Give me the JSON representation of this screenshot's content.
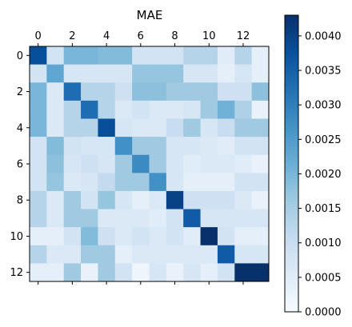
{
  "chart_data": {
    "type": "heatmap",
    "title": "MAE",
    "x_ticks": [
      "0",
      "2",
      "4",
      "6",
      "8",
      "10",
      "12"
    ],
    "y_ticks": [
      "0",
      "2",
      "4",
      "6",
      "8",
      "10",
      "12"
    ],
    "colorbar_ticks": [
      "0.0000",
      "0.0005",
      "0.0010",
      "0.0015",
      "0.0020",
      "0.0025",
      "0.0030",
      "0.0035",
      "0.0040"
    ],
    "colormap": "Blues",
    "vmin": 0.0,
    "vmax": 0.0043,
    "grid": false,
    "matrix": [
      [
        0.0038,
        0.0008,
        0.002,
        0.002,
        0.0019,
        0.0019,
        0.0008,
        0.0008,
        0.0008,
        0.0013,
        0.0013,
        0.0005,
        0.0013,
        0.0004
      ],
      [
        0.0008,
        0.0023,
        0.0007,
        0.0007,
        0.0007,
        0.0007,
        0.0017,
        0.0017,
        0.0017,
        0.0007,
        0.0007,
        0.0004,
        0.0007,
        0.0004
      ],
      [
        0.002,
        0.0006,
        0.0033,
        0.0013,
        0.0013,
        0.0009,
        0.0018,
        0.0018,
        0.0016,
        0.0016,
        0.0016,
        0.0009,
        0.0009,
        0.0018
      ],
      [
        0.002,
        0.0006,
        0.0013,
        0.0033,
        0.0013,
        0.0006,
        0.0008,
        0.0006,
        0.0006,
        0.0007,
        0.0016,
        0.0021,
        0.0014,
        0.0003
      ],
      [
        0.002,
        0.0006,
        0.0013,
        0.0013,
        0.0038,
        0.0007,
        0.0006,
        0.0006,
        0.001,
        0.0016,
        0.0007,
        0.001,
        0.0016,
        0.0016
      ],
      [
        0.0008,
        0.0019,
        0.0008,
        0.0007,
        0.0007,
        0.0027,
        0.0016,
        0.0016,
        0.0007,
        0.0007,
        0.0006,
        0.0005,
        0.0008,
        0.0008
      ],
      [
        0.0008,
        0.0018,
        0.0007,
        0.0009,
        0.0007,
        0.0016,
        0.0028,
        0.0016,
        0.0007,
        0.0005,
        0.0006,
        0.0006,
        0.0005,
        0.0003
      ],
      [
        0.0008,
        0.0017,
        0.0006,
        0.0007,
        0.0011,
        0.0016,
        0.0016,
        0.0027,
        0.0007,
        0.0004,
        0.0004,
        0.0004,
        0.0008,
        0.0008
      ],
      [
        0.0013,
        0.0006,
        0.0016,
        0.0008,
        0.0017,
        0.0007,
        0.0004,
        0.0006,
        0.004,
        0.0009,
        0.0009,
        0.0009,
        0.0006,
        0.0003
      ],
      [
        0.0013,
        0.0006,
        0.0016,
        0.0016,
        0.0006,
        0.0006,
        0.0006,
        0.0005,
        0.0008,
        0.0036,
        0.0007,
        0.0007,
        0.0007,
        0.0007
      ],
      [
        0.0004,
        0.0004,
        0.0008,
        0.0019,
        0.0009,
        0.0006,
        0.0008,
        0.0006,
        0.0008,
        0.0005,
        0.0043,
        0.0008,
        0.0004,
        0.0004
      ],
      [
        0.0013,
        0.0006,
        0.0006,
        0.0016,
        0.0016,
        0.0004,
        0.0006,
        0.0006,
        0.0006,
        0.0006,
        0.0006,
        0.0036,
        0.0007,
        0.0007
      ],
      [
        0.0004,
        0.0004,
        0.0016,
        0.0003,
        0.0016,
        0.0008,
        0.0002,
        0.0007,
        0.0003,
        0.0007,
        0.0004,
        0.0008,
        0.0043,
        0.0043
      ]
    ]
  }
}
